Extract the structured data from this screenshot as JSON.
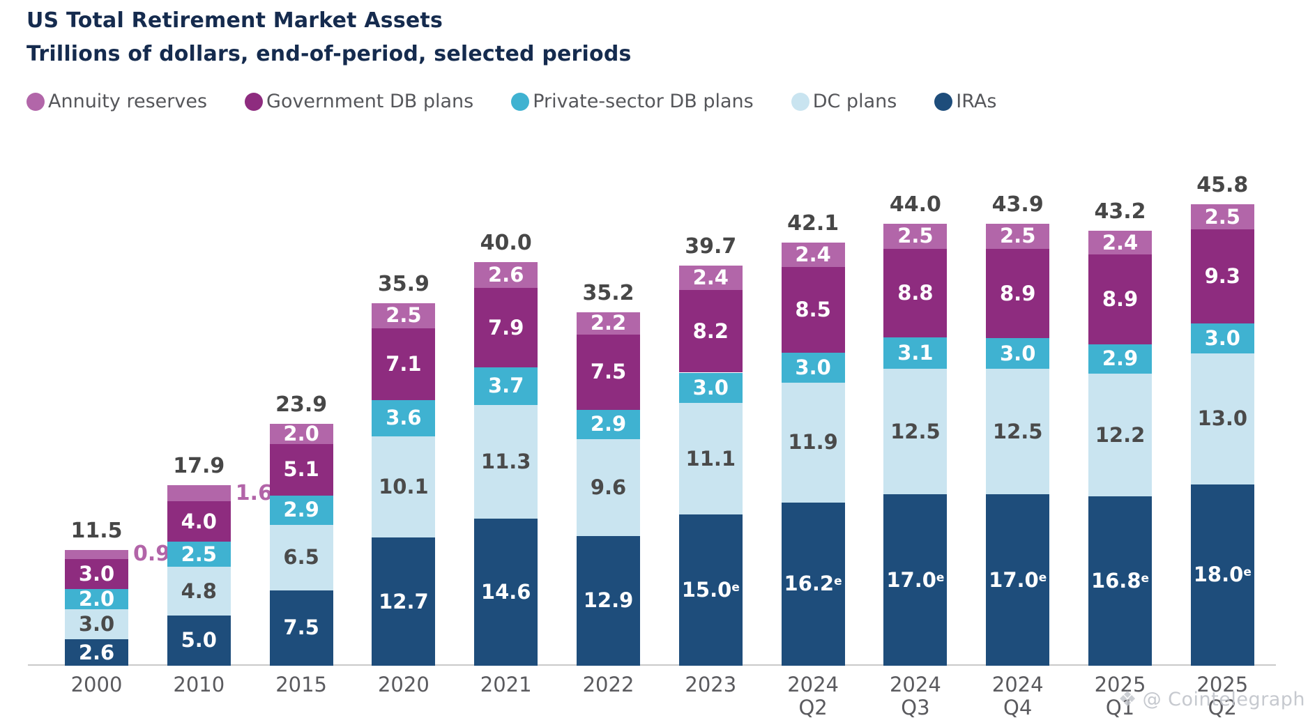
{
  "chart_data": {
    "type": "bar",
    "stacked": true,
    "title": "US Total Retirement Market Assets",
    "subtitle": "Trillions of dollars, end-of-period, selected periods",
    "value_unit": "trillions of US dollars",
    "legend_position": "top",
    "grid": false,
    "ylim": [
      0,
      46
    ],
    "legend": [
      {
        "key": "annuity",
        "label": "Annuity reserves",
        "color": "#b266a9"
      },
      {
        "key": "gov_db",
        "label": "Government DB plans",
        "color": "#8e2c7f"
      },
      {
        "key": "private_db",
        "label": "Private-sector DB plans",
        "color": "#3fb2d1"
      },
      {
        "key": "dc",
        "label": "DC plans",
        "color": "#c9e4f0"
      },
      {
        "key": "iras",
        "label": "IRAs",
        "color": "#1e4d7b"
      }
    ],
    "colors": {
      "annuity": "#b266a9",
      "gov_db": "#8e2c7f",
      "private_db": "#3fb2d1",
      "dc": "#c9e4f0",
      "iras": "#1e4d7b"
    },
    "label_colors": {
      "annuity": "#ffffff",
      "gov_db": "#ffffff",
      "private_db": "#ffffff",
      "dc": "#4a4a4a",
      "iras": "#ffffff"
    },
    "stack_order_bottom_to_top": [
      "iras",
      "dc",
      "private_db",
      "gov_db",
      "annuity"
    ],
    "estimate_note": "e = estimated (superscript on IRA values)",
    "bars": [
      {
        "category": "2000",
        "category_lines": [
          "2000"
        ],
        "total": "11.5",
        "segments": [
          {
            "key": "iras",
            "value": 2.6,
            "label": "2.6"
          },
          {
            "key": "dc",
            "value": 3.0,
            "label": "3.0"
          },
          {
            "key": "private_db",
            "value": 2.0,
            "label": "2.0"
          },
          {
            "key": "gov_db",
            "value": 3.0,
            "label": "3.0"
          },
          {
            "key": "annuity",
            "value": 0.9,
            "label": "0.9",
            "label_outside": true
          }
        ]
      },
      {
        "category": "2010",
        "category_lines": [
          "2010"
        ],
        "total": "17.9",
        "segments": [
          {
            "key": "iras",
            "value": 5.0,
            "label": "5.0"
          },
          {
            "key": "dc",
            "value": 4.8,
            "label": "4.8"
          },
          {
            "key": "private_db",
            "value": 2.5,
            "label": "2.5"
          },
          {
            "key": "gov_db",
            "value": 4.0,
            "label": "4.0"
          },
          {
            "key": "annuity",
            "value": 1.6,
            "label": "1.6",
            "label_outside": true
          }
        ]
      },
      {
        "category": "2015",
        "category_lines": [
          "2015"
        ],
        "total": "23.9",
        "segments": [
          {
            "key": "iras",
            "value": 7.5,
            "label": "7.5"
          },
          {
            "key": "dc",
            "value": 6.5,
            "label": "6.5"
          },
          {
            "key": "private_db",
            "value": 2.9,
            "label": "2.9"
          },
          {
            "key": "gov_db",
            "value": 5.1,
            "label": "5.1"
          },
          {
            "key": "annuity",
            "value": 2.0,
            "label": "2.0"
          }
        ]
      },
      {
        "category": "2020",
        "category_lines": [
          "2020"
        ],
        "total": "35.9",
        "segments": [
          {
            "key": "iras",
            "value": 12.7,
            "label": "12.7"
          },
          {
            "key": "dc",
            "value": 10.1,
            "label": "10.1"
          },
          {
            "key": "private_db",
            "value": 3.6,
            "label": "3.6"
          },
          {
            "key": "gov_db",
            "value": 7.1,
            "label": "7.1"
          },
          {
            "key": "annuity",
            "value": 2.5,
            "label": "2.5"
          }
        ]
      },
      {
        "category": "2021",
        "category_lines": [
          "2021"
        ],
        "total": "40.0",
        "segments": [
          {
            "key": "iras",
            "value": 14.6,
            "label": "14.6"
          },
          {
            "key": "dc",
            "value": 11.3,
            "label": "11.3"
          },
          {
            "key": "private_db",
            "value": 3.7,
            "label": "3.7"
          },
          {
            "key": "gov_db",
            "value": 7.9,
            "label": "7.9"
          },
          {
            "key": "annuity",
            "value": 2.6,
            "label": "2.6"
          }
        ]
      },
      {
        "category": "2022",
        "category_lines": [
          "2022"
        ],
        "total": "35.2",
        "segments": [
          {
            "key": "iras",
            "value": 12.9,
            "label": "12.9"
          },
          {
            "key": "dc",
            "value": 9.6,
            "label": "9.6"
          },
          {
            "key": "private_db",
            "value": 2.9,
            "label": "2.9"
          },
          {
            "key": "gov_db",
            "value": 7.5,
            "label": "7.5"
          },
          {
            "key": "annuity",
            "value": 2.2,
            "label": "2.2"
          }
        ]
      },
      {
        "category": "2023",
        "category_lines": [
          "2023"
        ],
        "total": "39.7",
        "segments": [
          {
            "key": "iras",
            "value": 15.0,
            "label": "15.0",
            "sup": "e"
          },
          {
            "key": "dc",
            "value": 11.1,
            "label": "11.1"
          },
          {
            "key": "private_db",
            "value": 3.0,
            "label": "3.0"
          },
          {
            "key": "gov_db",
            "value": 8.2,
            "label": "8.2"
          },
          {
            "key": "annuity",
            "value": 2.4,
            "label": "2.4"
          }
        ]
      },
      {
        "category": "2024 Q2",
        "category_lines": [
          "2024",
          "Q2"
        ],
        "total": "42.1",
        "segments": [
          {
            "key": "iras",
            "value": 16.2,
            "label": "16.2",
            "sup": "e"
          },
          {
            "key": "dc",
            "value": 11.9,
            "label": "11.9"
          },
          {
            "key": "private_db",
            "value": 3.0,
            "label": "3.0"
          },
          {
            "key": "gov_db",
            "value": 8.5,
            "label": "8.5"
          },
          {
            "key": "annuity",
            "value": 2.4,
            "label": "2.4"
          }
        ]
      },
      {
        "category": "2024 Q3",
        "category_lines": [
          "2024",
          "Q3"
        ],
        "total": "44.0",
        "segments": [
          {
            "key": "iras",
            "value": 17.0,
            "label": "17.0",
            "sup": "e"
          },
          {
            "key": "dc",
            "value": 12.5,
            "label": "12.5"
          },
          {
            "key": "private_db",
            "value": 3.1,
            "label": "3.1"
          },
          {
            "key": "gov_db",
            "value": 8.8,
            "label": "8.8"
          },
          {
            "key": "annuity",
            "value": 2.5,
            "label": "2.5"
          }
        ]
      },
      {
        "category": "2024 Q4",
        "category_lines": [
          "2024",
          "Q4"
        ],
        "total": "43.9",
        "segments": [
          {
            "key": "iras",
            "value": 17.0,
            "label": "17.0",
            "sup": "e"
          },
          {
            "key": "dc",
            "value": 12.5,
            "label": "12.5"
          },
          {
            "key": "private_db",
            "value": 3.0,
            "label": "3.0"
          },
          {
            "key": "gov_db",
            "value": 8.9,
            "label": "8.9"
          },
          {
            "key": "annuity",
            "value": 2.5,
            "label": "2.5"
          }
        ]
      },
      {
        "category": "2025 Q1",
        "category_lines": [
          "2025",
          "Q1"
        ],
        "total": "43.2",
        "segments": [
          {
            "key": "iras",
            "value": 16.8,
            "label": "16.8",
            "sup": "e"
          },
          {
            "key": "dc",
            "value": 12.2,
            "label": "12.2"
          },
          {
            "key": "private_db",
            "value": 2.9,
            "label": "2.9"
          },
          {
            "key": "gov_db",
            "value": 8.9,
            "label": "8.9"
          },
          {
            "key": "annuity",
            "value": 2.4,
            "label": "2.4"
          }
        ]
      },
      {
        "category": "2025 Q2",
        "category_lines": [
          "2025",
          "Q2"
        ],
        "total": "45.8",
        "segments": [
          {
            "key": "iras",
            "value": 18.0,
            "label": "18.0",
            "sup": "e"
          },
          {
            "key": "dc",
            "value": 13.0,
            "label": "13.0"
          },
          {
            "key": "private_db",
            "value": 3.0,
            "label": "3.0"
          },
          {
            "key": "gov_db",
            "value": 9.3,
            "label": "9.3"
          },
          {
            "key": "annuity",
            "value": 2.5,
            "label": "2.5"
          }
        ]
      }
    ]
  },
  "watermark": {
    "icon": "cointelegraph-diamond-icon",
    "text": "@ Cointelegraph"
  }
}
